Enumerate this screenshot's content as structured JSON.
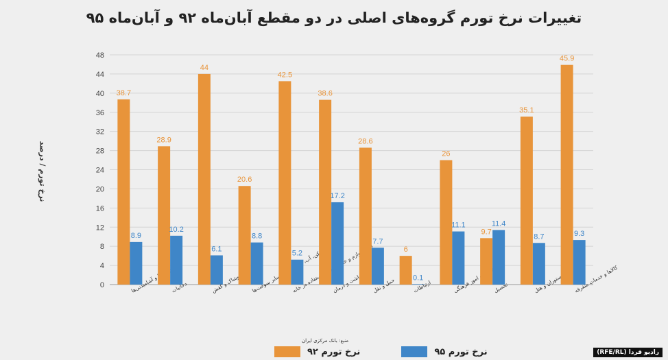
{
  "chart_data": {
    "type": "bar",
    "title": "تغییرات نرخ تورم گروه‌های اصلی در دو مقطع آبان‌ماه ۹۲ و آبان‌ماه ۹۵",
    "ylabel": "نرخ تورم / درصد",
    "xlabel": "",
    "ylim": [
      0,
      48
    ],
    "yticks": [
      0,
      4,
      8,
      12,
      16,
      20,
      24,
      28,
      32,
      36,
      40,
      44,
      48
    ],
    "grid": true,
    "legend_position": "bottom",
    "categories": [
      "خوراکی‌ها و آشامیدنی‌ها",
      "دخانیات",
      "پوشاک و کفش",
      "مسکن، آب، برق و گاز و سایر سوخت‌ها",
      "اثاث، لوازم و خدمات مورد استفاده در خانه",
      "بهداشت و درمان",
      "حمل و نقل",
      "ارتباطات",
      "تفریح و امور فرهنگی",
      "تحصیل",
      "رستوران و هتل",
      "کالاها و خدمات متفرقه"
    ],
    "series": [
      {
        "name": "نرخ تورم ۹۲",
        "color": "#e8943a",
        "values": [
          38.7,
          28.9,
          44,
          20.6,
          42.5,
          38.6,
          28.6,
          6,
          26,
          9.7,
          35.1,
          45.9
        ]
      },
      {
        "name": "نرخ تورم ۹۵",
        "color": "#3f86c8",
        "values": [
          8.9,
          10.2,
          6.1,
          8.8,
          5.2,
          17.2,
          7.7,
          0.1,
          11.1,
          11.4,
          8.7,
          9.3
        ]
      }
    ]
  },
  "source": "منبع: بانک مرکزی ایران",
  "watermark": "رادیو فردا (RFE/RL)"
}
